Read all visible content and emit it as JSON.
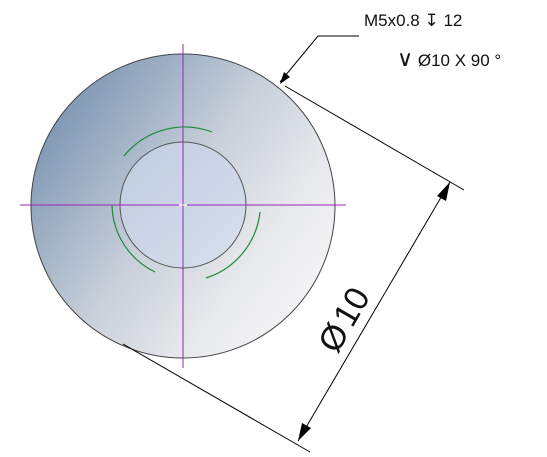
{
  "callout": {
    "thread_spec": "M5x0.8",
    "depth_symbol": "↧",
    "depth_value": "12",
    "countersink_symbol": "∨",
    "countersink_diameter": "Ø10 X 90 °"
  },
  "dimension": {
    "diameter_symbol": "Ø",
    "value": "10"
  },
  "colors": {
    "centerline": "#a020c0",
    "thread_arc": "#1e8a3a",
    "outline": "#222222",
    "dimension_line": "#000000",
    "face_light": "#f2f2f4",
    "face_dark": "#7f98b4",
    "hole_fill": "#c8d4e6"
  }
}
